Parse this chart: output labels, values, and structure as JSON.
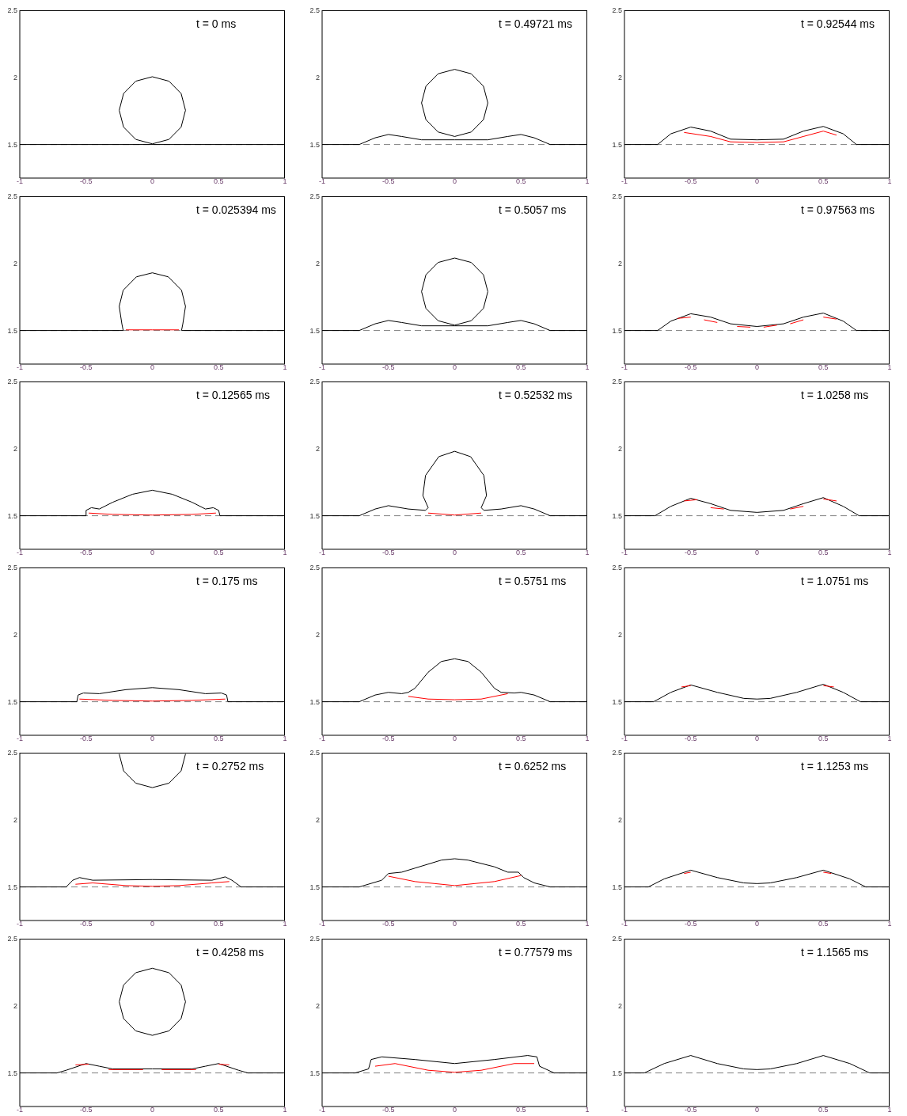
{
  "chart_data": [
    {
      "type": "line",
      "title": "t = 0 ms",
      "xlim": [
        -1,
        1
      ],
      "xticks": [
        -1,
        -0.5,
        0,
        0.5,
        1
      ],
      "ylim": [
        1.25,
        2.5
      ],
      "yticks": [
        1.5,
        2,
        2.5
      ],
      "ref_lines": [
        {
          "axis": "y",
          "value": 1.5,
          "line_style": "dashed",
          "color": "#808080"
        }
      ],
      "series": [
        {
          "color": "#000000",
          "x": [
            -1,
            1
          ],
          "values": [
            1.5,
            1.5
          ]
        },
        {
          "color": "#000000",
          "x": [
            -0.25,
            -0.217,
            -0.125,
            0,
            0.125,
            0.217,
            0.25
          ],
          "values": [
            1.755,
            1.88,
            1.972,
            2.005,
            1.972,
            1.88,
            1.755
          ]
        },
        {
          "color": "#000000",
          "x": [
            -0.25,
            -0.217,
            -0.125,
            0,
            0.125,
            0.217,
            0.25
          ],
          "values": [
            1.755,
            1.63,
            1.538,
            1.505,
            1.538,
            1.63,
            1.755
          ]
        }
      ]
    },
    {
      "type": "line",
      "title": "t = 0.49721 ms",
      "xlim": [
        -1,
        1
      ],
      "xticks": [
        -1,
        -0.5,
        0,
        0.5,
        1
      ],
      "ylim": [
        1.25,
        2.5
      ],
      "yticks": [
        1.5,
        2,
        2.5
      ],
      "ref_lines": [
        {
          "axis": "y",
          "value": 1.5,
          "line_style": "dashed",
          "color": "#808080"
        }
      ],
      "series": [
        {
          "color": "#000000",
          "x": [
            -1,
            -0.72,
            -0.6,
            -0.5,
            -0.4,
            -0.25,
            0,
            0.25,
            0.4,
            0.5,
            0.6,
            0.72,
            1
          ],
          "values": [
            1.5,
            1.5,
            1.55,
            1.575,
            1.56,
            1.535,
            1.535,
            1.535,
            1.56,
            1.575,
            1.55,
            1.5,
            1.5
          ]
        },
        {
          "color": "#000000",
          "x": [
            -0.25,
            -0.217,
            -0.125,
            0,
            0.125,
            0.217,
            0.25
          ],
          "values": [
            1.81,
            1.935,
            2.027,
            2.06,
            2.027,
            1.935,
            1.81
          ]
        },
        {
          "color": "#000000",
          "x": [
            -0.25,
            -0.217,
            -0.125,
            0,
            0.125,
            0.217,
            0.25
          ],
          "values": [
            1.81,
            1.685,
            1.593,
            1.56,
            1.593,
            1.685,
            1.81
          ]
        }
      ]
    },
    {
      "type": "line",
      "title": "t = 0.92544 ms",
      "xlim": [
        -1,
        1
      ],
      "xticks": [
        -1,
        -0.5,
        0,
        0.5,
        1
      ],
      "ylim": [
        1.25,
        2.5
      ],
      "yticks": [
        1.5,
        2,
        2.5
      ],
      "ref_lines": [
        {
          "axis": "y",
          "value": 1.5,
          "line_style": "dashed",
          "color": "#808080"
        }
      ],
      "series": [
        {
          "color": "#000000",
          "x": [
            -1,
            -0.75,
            -0.65,
            -0.5,
            -0.35,
            -0.2,
            0,
            0.2,
            0.35,
            0.5,
            0.65,
            0.75,
            1
          ],
          "values": [
            1.5,
            1.5,
            1.58,
            1.63,
            1.6,
            1.54,
            1.535,
            1.54,
            1.6,
            1.635,
            1.58,
            1.5,
            1.5
          ]
        },
        {
          "color": "#ff0000",
          "x": [
            -0.55,
            -0.35,
            -0.2,
            0,
            0.2,
            0.35,
            0.5,
            0.6
          ],
          "values": [
            1.59,
            1.56,
            1.52,
            1.515,
            1.52,
            1.56,
            1.6,
            1.57
          ]
        }
      ]
    },
    {
      "type": "line",
      "title": "t = 0.025394 ms",
      "xlim": [
        -1,
        1
      ],
      "xticks": [
        -1,
        -0.5,
        0,
        0.5,
        1
      ],
      "ylim": [
        1.25,
        2.5
      ],
      "yticks": [
        1.5,
        2,
        2.5
      ],
      "ref_lines": [
        {
          "axis": "y",
          "value": 1.5,
          "line_style": "dashed",
          "color": "#808080"
        }
      ],
      "series": [
        {
          "color": "#000000",
          "x": [
            -1,
            -0.22,
            -0.23,
            -0.25,
            -0.22,
            -0.12,
            0,
            0.12,
            0.22,
            0.25,
            0.23,
            0.22,
            1
          ],
          "values": [
            1.5,
            1.5,
            1.55,
            1.68,
            1.8,
            1.9,
            1.93,
            1.9,
            1.8,
            1.68,
            1.55,
            1.5,
            1.5
          ]
        },
        {
          "color": "#ff0000",
          "x": [
            -0.2,
            0,
            0.2
          ],
          "values": [
            1.505,
            1.505,
            1.505
          ]
        }
      ]
    },
    {
      "type": "line",
      "title": "t = 0.5057 ms",
      "xlim": [
        -1,
        1
      ],
      "xticks": [
        -1,
        -0.5,
        0,
        0.5,
        1
      ],
      "ylim": [
        1.25,
        2.5
      ],
      "yticks": [
        1.5,
        2,
        2.5
      ],
      "ref_lines": [
        {
          "axis": "y",
          "value": 1.5,
          "line_style": "dashed",
          "color": "#808080"
        }
      ],
      "series": [
        {
          "color": "#000000",
          "x": [
            -1,
            -0.72,
            -0.6,
            -0.5,
            -0.4,
            -0.25,
            0,
            0.25,
            0.4,
            0.5,
            0.6,
            0.72,
            1
          ],
          "values": [
            1.5,
            1.5,
            1.55,
            1.575,
            1.56,
            1.535,
            1.535,
            1.535,
            1.56,
            1.575,
            1.55,
            1.5,
            1.5
          ]
        },
        {
          "color": "#000000",
          "x": [
            -0.25,
            -0.217,
            -0.125,
            0,
            0.125,
            0.217,
            0.25
          ],
          "values": [
            1.79,
            1.915,
            2.007,
            2.04,
            2.007,
            1.915,
            1.79
          ]
        },
        {
          "color": "#000000",
          "x": [
            -0.25,
            -0.217,
            -0.125,
            0,
            0.125,
            0.217,
            0.25
          ],
          "values": [
            1.79,
            1.665,
            1.573,
            1.54,
            1.573,
            1.665,
            1.79
          ]
        }
      ]
    },
    {
      "type": "line",
      "title": "t = 0.97563 ms",
      "xlim": [
        -1,
        1
      ],
      "xticks": [
        -1,
        -0.5,
        0,
        0.5,
        1
      ],
      "ylim": [
        1.25,
        2.5
      ],
      "yticks": [
        1.5,
        2,
        2.5
      ],
      "ref_lines": [
        {
          "axis": "y",
          "value": 1.5,
          "line_style": "dashed",
          "color": "#808080"
        }
      ],
      "series": [
        {
          "color": "#000000",
          "x": [
            -1,
            -0.75,
            -0.65,
            -0.5,
            -0.35,
            -0.2,
            0,
            0.2,
            0.35,
            0.5,
            0.65,
            0.75,
            1
          ],
          "values": [
            1.5,
            1.5,
            1.57,
            1.625,
            1.6,
            1.55,
            1.53,
            1.55,
            1.6,
            1.63,
            1.57,
            1.5,
            1.5
          ]
        },
        {
          "color": "#ff0000",
          "x": [
            -0.6,
            -0.5,
            -0.45,
            -0.4,
            -0.3,
            -0.2,
            -0.15,
            -0.05,
            0,
            0.05,
            0.15,
            0.2,
            0.25,
            0.35,
            0.4,
            0.5,
            0.6
          ],
          "values": [
            1.59,
            1.6,
            null,
            1.58,
            1.56,
            null,
            1.53,
            1.525,
            null,
            1.525,
            1.54,
            null,
            1.55,
            1.58,
            null,
            1.6,
            1.585
          ]
        }
      ]
    },
    {
      "type": "line",
      "title": "t = 0.12565 ms",
      "xlim": [
        -1,
        1
      ],
      "xticks": [
        -1,
        -0.5,
        0,
        0.5,
        1
      ],
      "ylim": [
        1.25,
        2.5
      ],
      "yticks": [
        1.5,
        2,
        2.5
      ],
      "ref_lines": [
        {
          "axis": "y",
          "value": 1.5,
          "line_style": "dashed",
          "color": "#808080"
        }
      ],
      "series": [
        {
          "color": "#000000",
          "x": [
            -1,
            -0.5,
            -0.5,
            -0.46,
            -0.4,
            -0.3,
            -0.15,
            0,
            0.15,
            0.3,
            0.4,
            0.46,
            0.5,
            0.51,
            1
          ],
          "values": [
            1.5,
            1.5,
            1.54,
            1.56,
            1.55,
            1.6,
            1.66,
            1.69,
            1.66,
            1.6,
            1.55,
            1.56,
            1.54,
            1.5,
            1.5
          ]
        },
        {
          "color": "#ff0000",
          "x": [
            -0.48,
            -0.3,
            0,
            0.3,
            0.48
          ],
          "values": [
            1.52,
            1.51,
            1.505,
            1.51,
            1.52
          ]
        }
      ]
    },
    {
      "type": "line",
      "title": "t = 0.52532 ms",
      "xlim": [
        -1,
        1
      ],
      "xticks": [
        -1,
        -0.5,
        0,
        0.5,
        1
      ],
      "ylim": [
        1.25,
        2.5
      ],
      "yticks": [
        1.5,
        2,
        2.5
      ],
      "ref_lines": [
        {
          "axis": "y",
          "value": 1.5,
          "line_style": "dashed",
          "color": "#808080"
        }
      ],
      "series": [
        {
          "color": "#000000",
          "x": [
            -1,
            -0.72,
            -0.6,
            -0.5,
            -0.35,
            -0.22,
            -0.2,
            -0.24,
            -0.22,
            -0.12,
            0,
            0.12,
            0.22,
            0.24,
            0.2,
            0.22,
            0.35,
            0.5,
            0.6,
            0.72,
            1
          ],
          "values": [
            1.5,
            1.5,
            1.55,
            1.575,
            1.55,
            1.54,
            1.56,
            1.65,
            1.8,
            1.94,
            1.98,
            1.94,
            1.8,
            1.65,
            1.56,
            1.54,
            1.55,
            1.575,
            1.55,
            1.5,
            1.5
          ]
        },
        {
          "color": "#ff0000",
          "x": [
            -0.2,
            0,
            0.2
          ],
          "values": [
            1.52,
            1.505,
            1.52
          ]
        }
      ]
    },
    {
      "type": "line",
      "title": "t = 1.0258 ms",
      "xlim": [
        -1,
        1
      ],
      "xticks": [
        -1,
        -0.5,
        0,
        0.5,
        1
      ],
      "ylim": [
        1.25,
        2.5
      ],
      "yticks": [
        1.5,
        2,
        2.5
      ],
      "ref_lines": [
        {
          "axis": "y",
          "value": 1.5,
          "line_style": "dashed",
          "color": "#808080"
        }
      ],
      "series": [
        {
          "color": "#000000",
          "x": [
            -1,
            -0.77,
            -0.65,
            -0.5,
            -0.35,
            -0.2,
            0,
            0.2,
            0.35,
            0.5,
            0.65,
            0.77,
            1
          ],
          "values": [
            1.5,
            1.5,
            1.57,
            1.63,
            1.59,
            1.54,
            1.525,
            1.54,
            1.59,
            1.635,
            1.57,
            1.5,
            1.5
          ]
        },
        {
          "color": "#ff0000",
          "x": [
            -0.55,
            -0.45,
            -0.4,
            -0.35,
            -0.25,
            0,
            0.25,
            0.35,
            0.4,
            0.5,
            0.6
          ],
          "values": [
            1.61,
            1.62,
            null,
            1.56,
            1.55,
            null,
            1.55,
            1.57,
            null,
            1.625,
            1.61
          ]
        }
      ]
    },
    {
      "type": "line",
      "title": "t = 0.175 ms",
      "xlim": [
        -1,
        1
      ],
      "xticks": [
        -1,
        -0.5,
        0,
        0.5,
        1
      ],
      "ylim": [
        1.25,
        2.5
      ],
      "yticks": [
        1.5,
        2,
        2.5
      ],
      "ref_lines": [
        {
          "axis": "y",
          "value": 1.5,
          "line_style": "dashed",
          "color": "#808080"
        }
      ],
      "series": [
        {
          "color": "#000000",
          "x": [
            -1,
            -0.57,
            -0.56,
            -0.52,
            -0.4,
            -0.2,
            0,
            0.2,
            0.4,
            0.52,
            0.56,
            0.57,
            1
          ],
          "values": [
            1.5,
            1.5,
            1.55,
            1.565,
            1.56,
            1.59,
            1.605,
            1.59,
            1.56,
            1.565,
            1.55,
            1.5,
            1.5
          ]
        },
        {
          "color": "#ff0000",
          "x": [
            -0.55,
            -0.3,
            0,
            0.3,
            0.55
          ],
          "values": [
            1.52,
            1.51,
            1.505,
            1.51,
            1.52
          ]
        }
      ]
    },
    {
      "type": "line",
      "title": "t = 0.5751 ms",
      "xlim": [
        -1,
        1
      ],
      "xticks": [
        -1,
        -0.5,
        0,
        0.5,
        1
      ],
      "ylim": [
        1.25,
        2.5
      ],
      "yticks": [
        1.5,
        2,
        2.5
      ],
      "ref_lines": [
        {
          "axis": "y",
          "value": 1.5,
          "line_style": "dashed",
          "color": "#808080"
        }
      ],
      "series": [
        {
          "color": "#000000",
          "x": [
            -1,
            -0.72,
            -0.6,
            -0.5,
            -0.4,
            -0.35,
            -0.3,
            -0.2,
            -0.1,
            0,
            0.1,
            0.2,
            0.3,
            0.35,
            0.45,
            0.5,
            0.6,
            0.72,
            1
          ],
          "values": [
            1.5,
            1.5,
            1.55,
            1.57,
            1.56,
            1.57,
            1.6,
            1.72,
            1.8,
            1.82,
            1.8,
            1.72,
            1.6,
            1.57,
            1.565,
            1.57,
            1.55,
            1.5,
            1.5
          ]
        },
        {
          "color": "#ff0000",
          "x": [
            -0.35,
            -0.2,
            0,
            0.2,
            0.4
          ],
          "values": [
            1.54,
            1.52,
            1.515,
            1.52,
            1.56
          ]
        }
      ]
    },
    {
      "type": "line",
      "title": "t = 1.0751 ms",
      "xlim": [
        -1,
        1
      ],
      "xticks": [
        -1,
        -0.5,
        0,
        0.5,
        1
      ],
      "ylim": [
        1.25,
        2.5
      ],
      "yticks": [
        1.5,
        2,
        2.5
      ],
      "ref_lines": [
        {
          "axis": "y",
          "value": 1.5,
          "line_style": "dashed",
          "color": "#808080"
        }
      ],
      "series": [
        {
          "color": "#000000",
          "x": [
            -1,
            -0.78,
            -0.65,
            -0.5,
            -0.3,
            -0.1,
            0,
            0.1,
            0.3,
            0.5,
            0.65,
            0.78,
            1
          ],
          "values": [
            1.5,
            1.5,
            1.57,
            1.625,
            1.57,
            1.525,
            1.52,
            1.525,
            1.57,
            1.63,
            1.57,
            1.5,
            1.5
          ]
        },
        {
          "color": "#ff0000",
          "x": [
            -0.57,
            -0.5,
            0,
            0.5,
            0.58
          ],
          "values": [
            1.61,
            1.62,
            null,
            1.62,
            1.61
          ]
        }
      ]
    },
    {
      "type": "line",
      "title": "t = 0.2752 ms",
      "xlim": [
        -1,
        1
      ],
      "xticks": [
        -1,
        -0.5,
        0,
        0.5,
        1
      ],
      "ylim": [
        1.25,
        2.5
      ],
      "yticks": [
        1.5,
        2,
        2.5
      ],
      "ref_lines": [
        {
          "axis": "y",
          "value": 1.5,
          "line_style": "dashed",
          "color": "#808080"
        }
      ],
      "series": [
        {
          "color": "#000000",
          "x": [
            -1,
            -0.65,
            -0.6,
            -0.55,
            -0.45,
            0,
            0.45,
            0.55,
            0.6,
            0.67,
            1
          ],
          "values": [
            1.5,
            1.5,
            1.55,
            1.57,
            1.55,
            1.555,
            1.55,
            1.575,
            1.55,
            1.5,
            1.5
          ]
        },
        {
          "color": "#000000",
          "x": [
            -0.25,
            -0.217,
            -0.125,
            0,
            0.125,
            0.217,
            0.25
          ],
          "values": [
            2.49,
            2.365,
            2.273,
            2.24,
            2.273,
            2.365,
            2.49
          ]
        },
        {
          "color": "#ff0000",
          "x": [
            -0.58,
            -0.45,
            -0.2,
            0,
            0.2,
            0.45,
            0.58
          ],
          "values": [
            1.52,
            1.53,
            1.51,
            1.505,
            1.51,
            1.53,
            1.54
          ]
        }
      ]
    },
    {
      "type": "line",
      "title": "t = 0.6252 ms",
      "xlim": [
        -1,
        1
      ],
      "xticks": [
        -1,
        -0.5,
        0,
        0.5,
        1
      ],
      "ylim": [
        1.25,
        2.5
      ],
      "yticks": [
        1.5,
        2,
        2.5
      ],
      "ref_lines": [
        {
          "axis": "y",
          "value": 1.5,
          "line_style": "dashed",
          "color": "#808080"
        }
      ],
      "series": [
        {
          "color": "#000000",
          "x": [
            -1,
            -0.72,
            -0.55,
            -0.5,
            -0.4,
            -0.3,
            -0.1,
            0,
            0.1,
            0.3,
            0.4,
            0.48,
            0.52,
            0.6,
            0.72,
            1
          ],
          "values": [
            1.5,
            1.5,
            1.55,
            1.6,
            1.61,
            1.64,
            1.7,
            1.71,
            1.7,
            1.65,
            1.61,
            1.61,
            1.57,
            1.53,
            1.5,
            1.5
          ]
        },
        {
          "color": "#ff0000",
          "x": [
            -0.5,
            -0.3,
            0,
            0.3,
            0.5
          ],
          "values": [
            1.58,
            1.54,
            1.51,
            1.54,
            1.585
          ]
        }
      ]
    },
    {
      "type": "line",
      "title": "t = 1.1253 ms",
      "xlim": [
        -1,
        1
      ],
      "xticks": [
        -1,
        -0.5,
        0,
        0.5,
        1
      ],
      "ylim": [
        1.25,
        2.5
      ],
      "yticks": [
        1.5,
        2,
        2.5
      ],
      "ref_lines": [
        {
          "axis": "y",
          "value": 1.5,
          "line_style": "dashed",
          "color": "#808080"
        }
      ],
      "series": [
        {
          "color": "#000000",
          "x": [
            -1,
            -0.82,
            -0.7,
            -0.5,
            -0.3,
            -0.1,
            0,
            0.1,
            0.3,
            0.5,
            0.7,
            0.82,
            1
          ],
          "values": [
            1.5,
            1.5,
            1.56,
            1.625,
            1.57,
            1.53,
            1.525,
            1.53,
            1.57,
            1.625,
            1.56,
            1.5,
            1.5
          ]
        },
        {
          "color": "#ff0000",
          "x": [
            -0.55,
            -0.5,
            0,
            0.5,
            0.56
          ],
          "values": [
            1.6,
            1.61,
            null,
            1.61,
            1.6
          ]
        }
      ]
    },
    {
      "type": "line",
      "title": "t = 0.4258 ms",
      "xlim": [
        -1,
        1
      ],
      "xticks": [
        -1,
        -0.5,
        0,
        0.5,
        1
      ],
      "ylim": [
        1.25,
        2.5
      ],
      "yticks": [
        1.5,
        2,
        2.5
      ],
      "ref_lines": [
        {
          "axis": "y",
          "value": 1.5,
          "line_style": "dashed",
          "color": "#808080"
        }
      ],
      "series": [
        {
          "color": "#000000",
          "x": [
            -1,
            -0.72,
            -0.65,
            -0.5,
            -0.4,
            -0.3,
            0,
            0.3,
            0.4,
            0.5,
            0.65,
            0.72,
            1
          ],
          "values": [
            1.5,
            1.5,
            1.52,
            1.57,
            1.55,
            1.53,
            1.53,
            1.53,
            1.55,
            1.57,
            1.52,
            1.5,
            1.5
          ]
        },
        {
          "color": "#000000",
          "x": [
            -0.25,
            -0.217,
            -0.125,
            0,
            0.125,
            0.217,
            0.25
          ],
          "values": [
            2.03,
            2.155,
            2.247,
            2.28,
            2.247,
            2.155,
            2.03
          ]
        },
        {
          "color": "#000000",
          "x": [
            -0.25,
            -0.217,
            -0.125,
            0,
            0.125,
            0.217,
            0.25
          ],
          "values": [
            2.03,
            1.905,
            1.813,
            1.78,
            1.813,
            1.905,
            2.03
          ]
        },
        {
          "color": "#ff0000",
          "x": [
            -0.58,
            -0.48,
            -0.4,
            -0.33,
            -0.07,
            0,
            0.07,
            0.33,
            0.4,
            0.5,
            0.58
          ],
          "values": [
            1.56,
            1.565,
            null,
            1.525,
            1.525,
            null,
            1.525,
            1.525,
            null,
            1.565,
            1.56
          ]
        }
      ]
    },
    {
      "type": "line",
      "title": "t = 0.77579 ms",
      "xlim": [
        -1,
        1
      ],
      "xticks": [
        -1,
        -0.5,
        0,
        0.5,
        1
      ],
      "ylim": [
        1.25,
        2.5
      ],
      "yticks": [
        1.5,
        2,
        2.5
      ],
      "ref_lines": [
        {
          "axis": "y",
          "value": 1.5,
          "line_style": "dashed",
          "color": "#808080"
        }
      ],
      "series": [
        {
          "color": "#000000",
          "x": [
            -1,
            -0.75,
            -0.65,
            -0.63,
            -0.55,
            -0.3,
            0,
            0.3,
            0.55,
            0.62,
            0.64,
            0.75,
            1
          ],
          "values": [
            1.5,
            1.5,
            1.53,
            1.6,
            1.62,
            1.6,
            1.57,
            1.6,
            1.63,
            1.62,
            1.55,
            1.5,
            1.5
          ]
        },
        {
          "color": "#ff0000",
          "x": [
            -0.6,
            -0.45,
            -0.2,
            0,
            0.2,
            0.45,
            0.6
          ],
          "values": [
            1.55,
            1.57,
            1.52,
            1.505,
            1.52,
            1.57,
            1.57
          ]
        }
      ]
    },
    {
      "type": "line",
      "title": "t = 1.1565 ms",
      "xlim": [
        -1,
        1
      ],
      "xticks": [
        -1,
        -0.5,
        0,
        0.5,
        1
      ],
      "ylim": [
        1.25,
        2.5
      ],
      "yticks": [
        1.5,
        2,
        2.5
      ],
      "ref_lines": [
        {
          "axis": "y",
          "value": 1.5,
          "line_style": "dashed",
          "color": "#808080"
        }
      ],
      "series": [
        {
          "color": "#000000",
          "x": [
            -1,
            -0.85,
            -0.7,
            -0.5,
            -0.3,
            -0.1,
            0,
            0.1,
            0.3,
            0.5,
            0.7,
            0.85,
            1
          ],
          "values": [
            1.5,
            1.5,
            1.57,
            1.63,
            1.57,
            1.53,
            1.525,
            1.53,
            1.57,
            1.63,
            1.57,
            1.5,
            1.5
          ]
        }
      ]
    }
  ]
}
